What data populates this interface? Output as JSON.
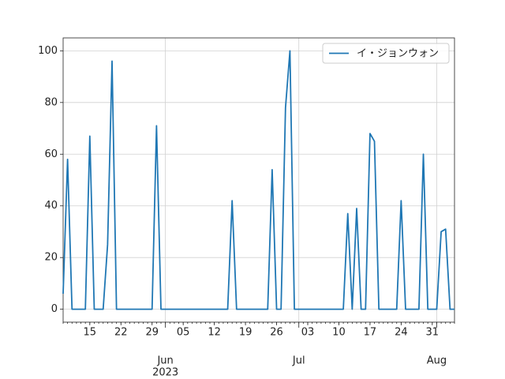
{
  "chart_data": {
    "type": "line",
    "x": [
      "2023-05-09",
      "2023-05-10",
      "2023-05-11",
      "2023-05-12",
      "2023-05-13",
      "2023-05-14",
      "2023-05-15",
      "2023-05-16",
      "2023-05-17",
      "2023-05-18",
      "2023-05-19",
      "2023-05-20",
      "2023-05-21",
      "2023-05-22",
      "2023-05-23",
      "2023-05-24",
      "2023-05-25",
      "2023-05-26",
      "2023-05-27",
      "2023-05-28",
      "2023-05-29",
      "2023-05-30",
      "2023-05-31",
      "2023-06-01",
      "2023-06-02",
      "2023-06-03",
      "2023-06-04",
      "2023-06-05",
      "2023-06-06",
      "2023-06-07",
      "2023-06-08",
      "2023-06-09",
      "2023-06-10",
      "2023-06-11",
      "2023-06-12",
      "2023-06-13",
      "2023-06-14",
      "2023-06-15",
      "2023-06-16",
      "2023-06-17",
      "2023-06-18",
      "2023-06-19",
      "2023-06-20",
      "2023-06-21",
      "2023-06-22",
      "2023-06-23",
      "2023-06-24",
      "2023-06-25",
      "2023-06-26",
      "2023-06-27",
      "2023-06-28",
      "2023-06-29",
      "2023-06-30",
      "2023-07-01",
      "2023-07-02",
      "2023-07-03",
      "2023-07-04",
      "2023-07-05",
      "2023-07-06",
      "2023-07-07",
      "2023-07-08",
      "2023-07-09",
      "2023-07-10",
      "2023-07-11",
      "2023-07-12",
      "2023-07-13",
      "2023-07-14",
      "2023-07-15",
      "2023-07-16",
      "2023-07-17",
      "2023-07-18",
      "2023-07-19",
      "2023-07-20",
      "2023-07-21",
      "2023-07-22",
      "2023-07-23",
      "2023-07-24",
      "2023-07-25",
      "2023-07-26",
      "2023-07-27",
      "2023-07-28",
      "2023-07-29",
      "2023-07-30",
      "2023-07-31",
      "2023-08-01",
      "2023-08-02",
      "2023-08-03",
      "2023-08-04",
      "2023-08-05"
    ],
    "series": [
      {
        "name": "イ・ジョンウォン",
        "color": "#1f77b4",
        "values": [
          6,
          58,
          0,
          0,
          0,
          0,
          67,
          0,
          0,
          0,
          25,
          96,
          0,
          0,
          0,
          0,
          0,
          0,
          0,
          0,
          0,
          71,
          0,
          0,
          0,
          0,
          0,
          0,
          0,
          0,
          0,
          0,
          0,
          0,
          0,
          0,
          0,
          0,
          42,
          0,
          0,
          0,
          0,
          0,
          0,
          0,
          0,
          54,
          0,
          0,
          78,
          100,
          0,
          0,
          0,
          0,
          0,
          0,
          0,
          0,
          0,
          0,
          0,
          0,
          37,
          0,
          39,
          0,
          0,
          68,
          65,
          0,
          0,
          0,
          0,
          0,
          42,
          0,
          0,
          0,
          0,
          60,
          0,
          0,
          0,
          30,
          31,
          0,
          0
        ]
      }
    ],
    "xlim": [
      "2023-05-09",
      "2023-08-05"
    ],
    "xticks": [
      {
        "value": "2023-05-15",
        "label": "15"
      },
      {
        "value": "2023-05-22",
        "label": "22"
      },
      {
        "value": "2023-05-29",
        "label": "29"
      },
      {
        "value": "2023-06-05",
        "label": "05"
      },
      {
        "value": "2023-06-12",
        "label": "12"
      },
      {
        "value": "2023-06-19",
        "label": "19"
      },
      {
        "value": "2023-06-26",
        "label": "26"
      },
      {
        "value": "2023-07-03",
        "label": "03"
      },
      {
        "value": "2023-07-10",
        "label": "10"
      },
      {
        "value": "2023-07-17",
        "label": "17"
      },
      {
        "value": "2023-07-24",
        "label": "24"
      },
      {
        "value": "2023-07-31",
        "label": "31"
      }
    ],
    "xticks_major": [
      {
        "value": "2023-06-01",
        "label": "Jun"
      },
      {
        "value": "2023-07-01",
        "label": "Jul"
      },
      {
        "value": "2023-08-01",
        "label": "Aug"
      }
    ],
    "year_label": "2023",
    "ylim": [
      -5,
      105
    ],
    "yticks": [
      0,
      20,
      40,
      60,
      80,
      100
    ],
    "grid": true,
    "legend": "upper right"
  }
}
